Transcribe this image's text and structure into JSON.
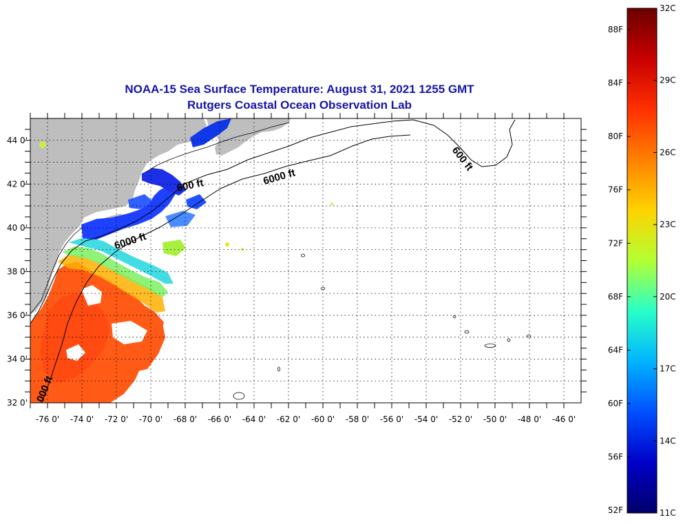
{
  "title": {
    "line1": "NOAA-15 Sea Surface Temperature:  August 31, 2021 1255 GMT",
    "line2": "Rutgers Coastal Ocean Observation Lab"
  },
  "map": {
    "lat_labels": [
      "44 0'",
      "42 0'",
      "40 0'",
      "38 0'",
      "36 0'",
      "34 0'",
      "32 0'"
    ],
    "lon_labels": [
      "-76 0'",
      "-74 0'",
      "-72 0'",
      "-70 0'",
      "-68 0'",
      "-66 0'",
      "-64 0'",
      "-62 0'",
      "-60 0'",
      "-58 0'",
      "-56 0'",
      "-54 0'",
      "-52 0'",
      "-50 0'",
      "-48 0'",
      "-46 0'"
    ],
    "contour_labels": {
      "c600_north": "600 ft",
      "c600_gom": "600 ft",
      "c6000_north": "6000 ft",
      "c6000_mid": "6000 ft",
      "c6000_south": "000 ft"
    },
    "colors": {
      "land": "#bebebe",
      "ocean_cloud": "#ffffff",
      "grid": "#000000"
    }
  },
  "colorbar": {
    "fahrenheit": [
      "88F",
      "84F",
      "80F",
      "76F",
      "72F",
      "68F",
      "64F",
      "60F",
      "56F",
      "52F"
    ],
    "celsius": [
      "32C",
      "29C",
      "26C",
      "23C",
      "20C",
      "17C",
      "14C",
      "11C"
    ],
    "gradient": [
      "#6b0000",
      "#c80000",
      "#ff3000",
      "#ff8000",
      "#ffd200",
      "#b4ff32",
      "#28ffc8",
      "#00b4ff",
      "#0050ff",
      "#0000c8",
      "#00006b"
    ]
  }
}
